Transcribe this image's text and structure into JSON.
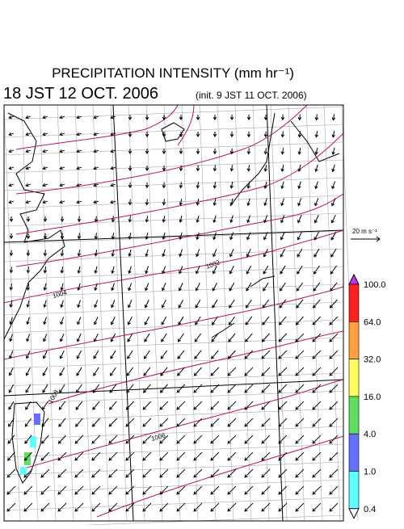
{
  "header": {
    "title": "PRECIPITATION INTENSITY (mm hr⁻¹)",
    "valid_time": "18 JST 12 OCT. 2006",
    "init_time": "(init. 9 JST 11 OCT. 2006)"
  },
  "vector_scale": {
    "label": "20 m s⁻¹"
  },
  "colorbar": {
    "labels": [
      "100.0",
      "64.0",
      "32.0",
      "16.0",
      "4.0",
      "1.0",
      "0.4"
    ],
    "colors": [
      "#ff2020",
      "#ffa040",
      "#ffff60",
      "#60e060",
      "#6670ff",
      "#60ffff"
    ],
    "over_color": "#c030ff",
    "under_color": "#ffffff"
  },
  "contour_labels": [
    "1002",
    "1004",
    "1006",
    "1008"
  ]
}
